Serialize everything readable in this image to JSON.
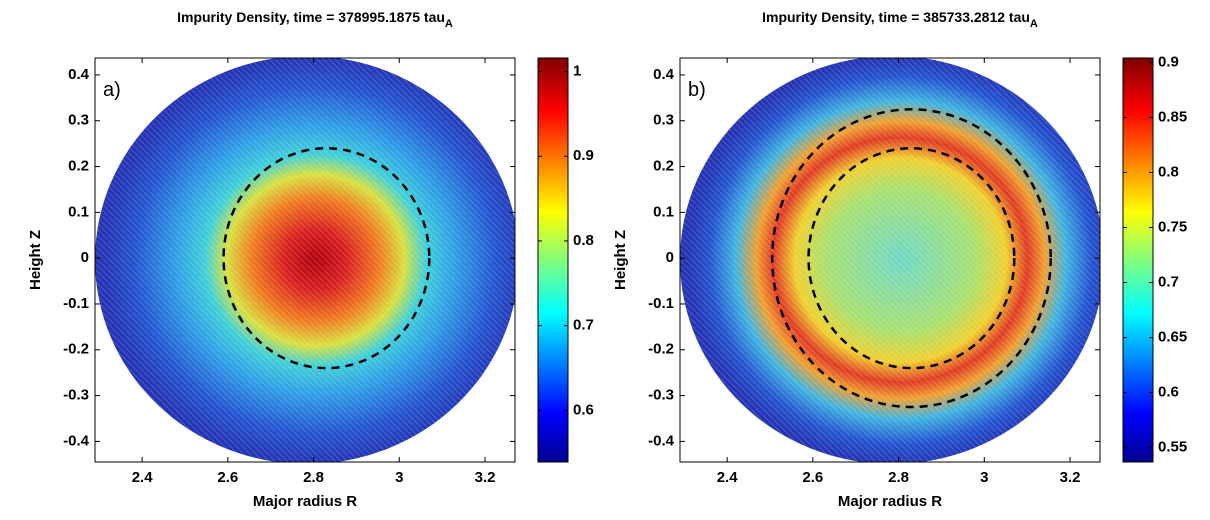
{
  "chart_data": [
    {
      "type": "contour",
      "title": "Impurity Density, time = 378995.1875 tau",
      "title_subscript": "A",
      "panel_label": "a)",
      "xlabel": "Major radius R",
      "ylabel": "Height Z",
      "xlim": [
        2.29,
        3.27
      ],
      "ylim": [
        -0.445,
        0.437
      ],
      "xticks": [
        2.4,
        2.6,
        2.8,
        3,
        3.2
      ],
      "yticks": [
        -0.4,
        -0.3,
        -0.2,
        -0.1,
        0,
        0.1,
        0.2,
        0.3,
        0.4
      ],
      "colormap": "jet",
      "clim": [
        0.539,
        1.016
      ],
      "cticks": [
        0.6,
        0.7,
        0.8,
        0.9,
        1
      ],
      "dashed_circles": [
        {
          "cx": 2.83,
          "cy": 0,
          "r": 0.24
        }
      ]
    },
    {
      "type": "contour",
      "title": "Impurity Density, time = 385733.2812 tau",
      "title_subscript": "A",
      "panel_label": "b)",
      "xlabel": "Major radius R",
      "ylabel": "Height Z",
      "xlim": [
        2.29,
        3.27
      ],
      "ylim": [
        -0.445,
        0.437
      ],
      "xticks": [
        2.4,
        2.6,
        2.8,
        3,
        3.2
      ],
      "yticks": [
        -0.4,
        -0.3,
        -0.2,
        -0.1,
        0,
        0.1,
        0.2,
        0.3,
        0.4
      ],
      "colormap": "jet",
      "clim": [
        0.537,
        0.904
      ],
      "cticks": [
        0.55,
        0.6,
        0.65,
        0.7,
        0.75,
        0.8,
        0.85,
        0.9
      ],
      "dashed_circles": [
        {
          "cx": 2.83,
          "cy": 0,
          "r": 0.24
        },
        {
          "cx": 2.83,
          "cy": 0,
          "r": 0.325
        }
      ]
    }
  ]
}
